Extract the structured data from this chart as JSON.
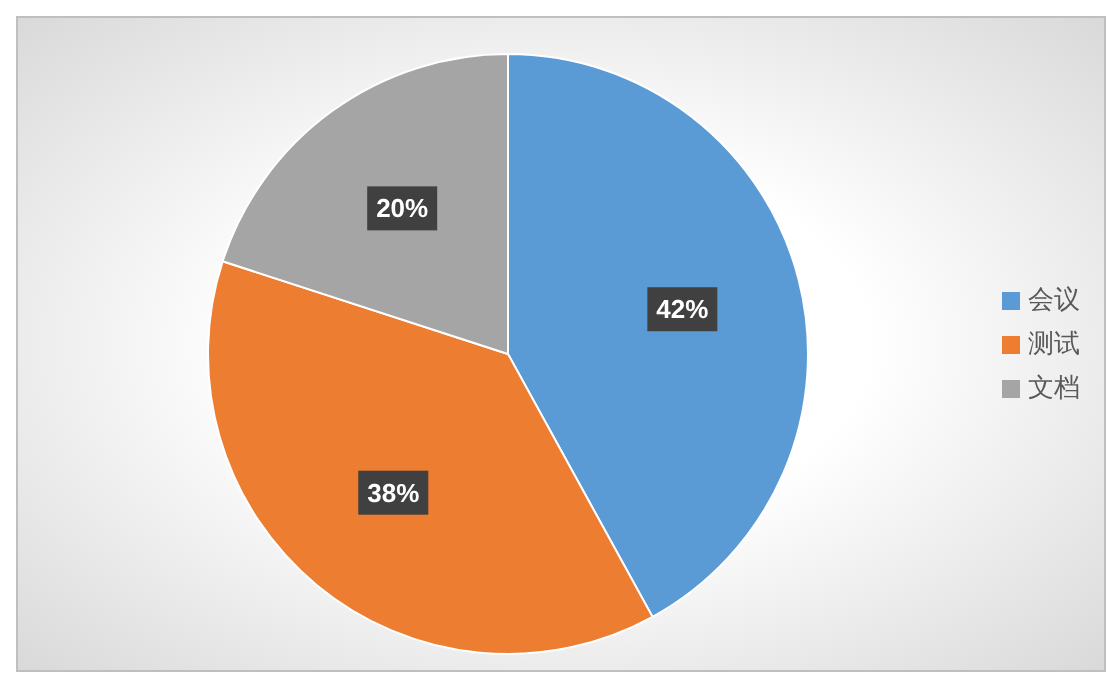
{
  "chart_data": {
    "type": "pie",
    "categories": [
      "会议",
      "测试",
      "文档"
    ],
    "values": [
      42,
      38,
      20
    ],
    "colors": [
      "#5b9bd5",
      "#ed7d31",
      "#a5a5a5"
    ],
    "value_labels": [
      "42%",
      "38%",
      "20%"
    ],
    "legend": "right"
  }
}
